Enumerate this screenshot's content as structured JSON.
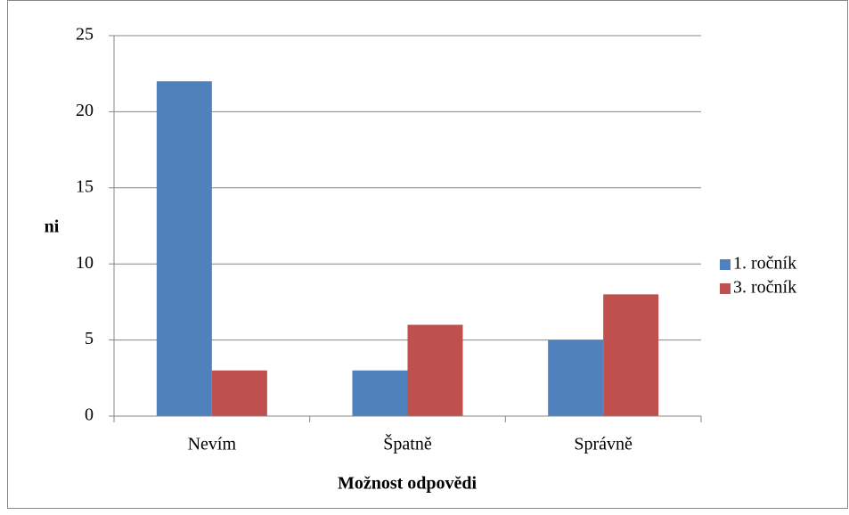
{
  "chart_data": {
    "type": "bar",
    "categories": [
      "Nevím",
      "Špatně",
      "Správně"
    ],
    "series": [
      {
        "name": "1. ročník",
        "color": "#4f81bd",
        "values": [
          22,
          3,
          5
        ]
      },
      {
        "name": "3. ročník",
        "color": "#c0504d",
        "values": [
          3,
          6,
          8
        ]
      }
    ],
    "xlabel": "Možnost odpovědi",
    "ylabel": "ni",
    "ylim": [
      0,
      25
    ],
    "yticks": [
      0,
      5,
      10,
      15,
      20,
      25
    ],
    "grid": true,
    "legend": "right"
  }
}
